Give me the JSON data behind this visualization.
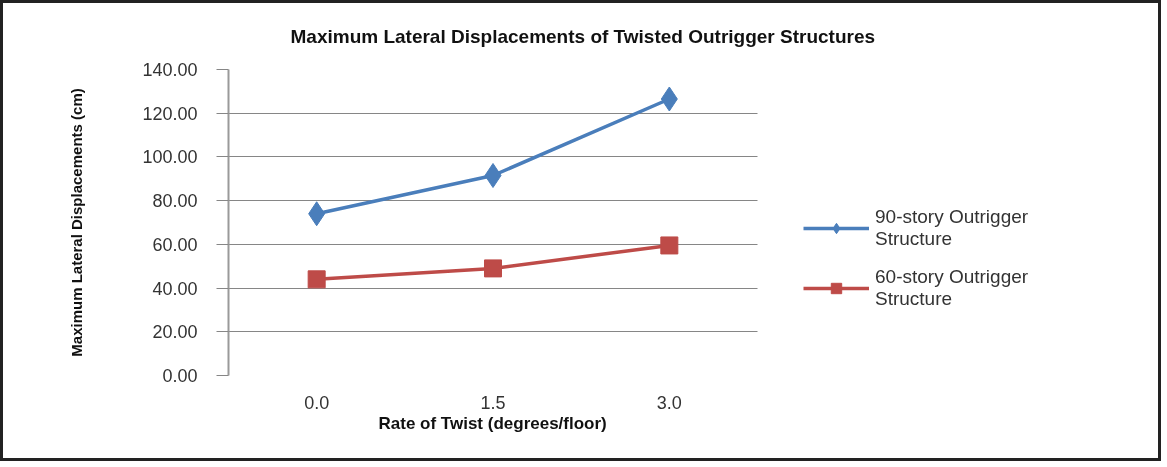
{
  "chart_data": {
    "type": "line",
    "title": "Maximum Lateral Displacements of Twisted Outrigger Structures",
    "xlabel": "Rate of Twist (degrees/floor)",
    "ylabel": "Maximum Lateral Displacements (cm)",
    "categories": [
      "0.0",
      "1.5",
      "3.0"
    ],
    "series": [
      {
        "name": "90-story Outrigger Structure",
        "color": "#4a7ebb",
        "marker": "diamond",
        "values": [
          74,
          91.5,
          126.5
        ]
      },
      {
        "name": "60-story Outrigger Structure",
        "color": "#be4b48",
        "marker": "square",
        "values": [
          44,
          49,
          59.5
        ]
      }
    ],
    "ylim": [
      0,
      140
    ],
    "yticks": [
      {
        "value": 0,
        "label": "0.00"
      },
      {
        "value": 20,
        "label": "20.00"
      },
      {
        "value": 40,
        "label": "40.00"
      },
      {
        "value": 60,
        "label": "60.00"
      },
      {
        "value": 80,
        "label": "80.00"
      },
      {
        "value": 100,
        "label": "100.00"
      },
      {
        "value": 120,
        "label": "120.00"
      },
      {
        "value": 140,
        "label": "140.00"
      }
    ],
    "grid": "y",
    "legend": "right",
    "line_style": "solid"
  }
}
